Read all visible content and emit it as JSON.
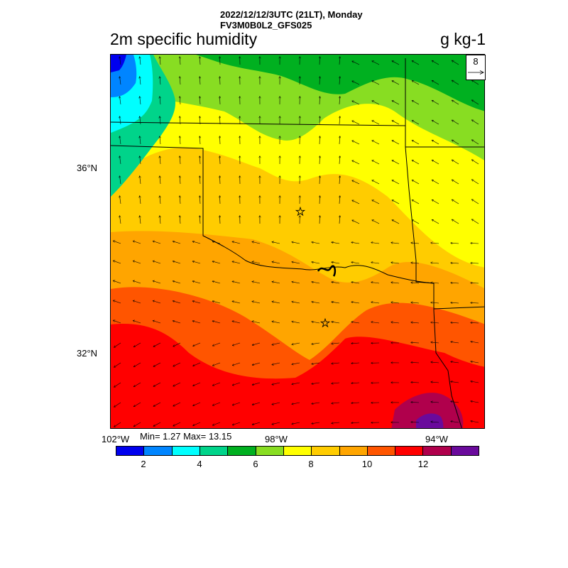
{
  "header": {
    "datetime": "2022/12/12/3UTC (21LT), Monday",
    "model": "FV3M0B0L2_GFS025"
  },
  "title": "2m specific humidity",
  "units": "g kg-1",
  "lat_labels": [
    "36°N",
    "32°N"
  ],
  "lon_labels": [
    "102°W",
    "98°W",
    "94°W"
  ],
  "stats": "Min= 1.27 Max= 13.15",
  "colorbar": {
    "colors": [
      "#0000ee",
      "#0085ff",
      "#00ffff",
      "#00d48a",
      "#00b020",
      "#88dd22",
      "#ffff00",
      "#ffcc00",
      "#ffa500",
      "#ff5500",
      "#ff0000",
      "#b0004c",
      "#6a0a9c"
    ],
    "labels": [
      "2",
      "4",
      "6",
      "8",
      "10",
      "12"
    ]
  },
  "ref_vector": {
    "label": "8",
    "icon": "reference-vector-arrow"
  },
  "markers": {
    "icon": "star-icon"
  }
}
